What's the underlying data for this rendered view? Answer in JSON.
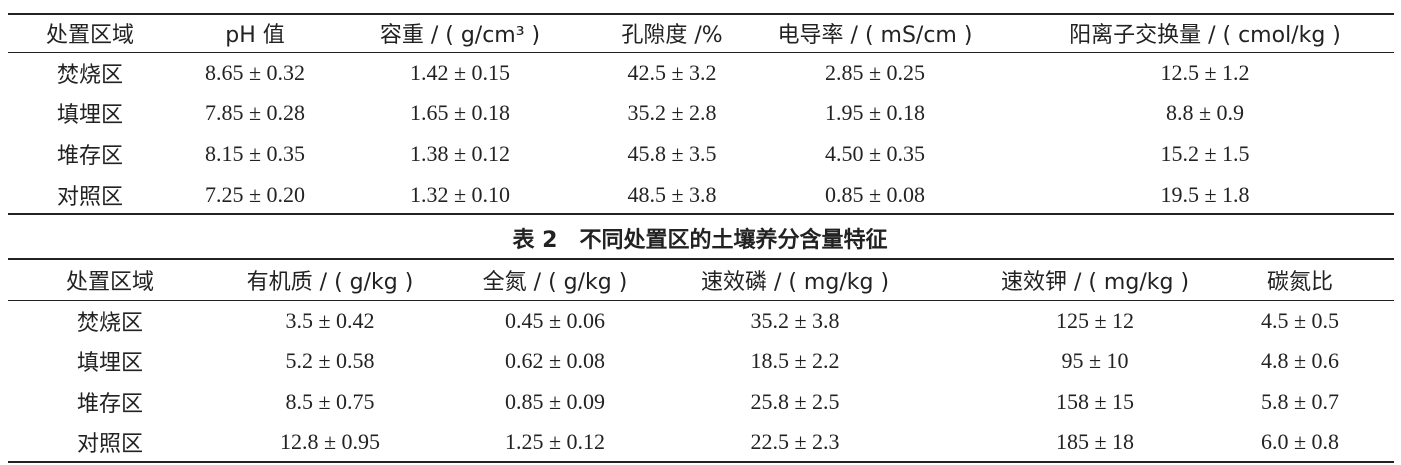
{
  "table1": {
    "header": [
      "处置区域",
      "pH 值",
      "容重 / ( g/cm³ )",
      "孔隙度 /%",
      "电导率 / ( mS/cm )",
      "阳离子交换量 / ( cmol/kg )"
    ],
    "rows": [
      [
        "焚烧区",
        "8.65 ± 0.32",
        "1.42 ± 0.15",
        "42.5 ± 3.2",
        "2.85 ± 0.25",
        "12.5 ± 1.2"
      ],
      [
        "填埋区",
        "7.85 ± 0.28",
        "1.65 ± 0.18",
        "35.2 ± 2.8",
        "1.95 ± 0.18",
        "8.8 ± 0.9"
      ],
      [
        "堆存区",
        "8.15 ± 0.35",
        "1.38 ± 0.12",
        "45.8 ± 3.5",
        "4.50 ± 0.35",
        "15.2 ± 1.5"
      ],
      [
        "对照区",
        "7.25 ± 0.20",
        "1.32 ± 0.10",
        "48.5 ± 3.8",
        "0.85 ± 0.08",
        "19.5 ± 1.8"
      ]
    ]
  },
  "table2": {
    "title": "表 2　不同处置区的土壤养分含量特征",
    "header": [
      "处置区域",
      "有机质 / ( g/kg )",
      "全氮 / ( g/kg )",
      "速效磷 / ( mg/kg )",
      "速效钾 / ( mg/kg )",
      "碳氮比"
    ],
    "rows": [
      [
        "焚烧区",
        "3.5 ± 0.42",
        "0.45 ± 0.06",
        "35.2 ± 3.8",
        "125 ± 12",
        "4.5 ± 0.5"
      ],
      [
        "填埋区",
        "5.2 ± 0.58",
        "0.62 ± 0.08",
        "18.5 ± 2.2",
        "95 ± 10",
        "4.8 ± 0.6"
      ],
      [
        "堆存区",
        "8.5 ± 0.75",
        "0.85 ± 0.09",
        "25.8 ± 2.5",
        "158 ± 15",
        "5.8 ± 0.7"
      ],
      [
        "对照区",
        "12.8 ± 0.95",
        "1.25 ± 0.12",
        "22.5 ± 2.3",
        "185 ± 18",
        "6.0 ± 0.8"
      ]
    ]
  }
}
